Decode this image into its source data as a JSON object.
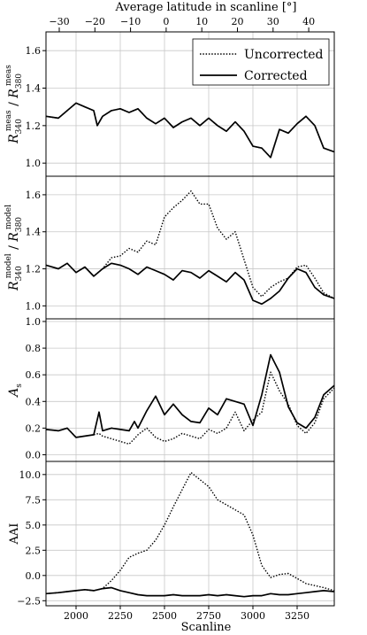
{
  "figure": {
    "top_axis_label": "Average latitude in scanline [°]",
    "bottom_axis_label": "Scanline",
    "top_ticks": [
      "−30",
      "−20",
      "−10",
      "0",
      "10",
      "20",
      "30",
      "40"
    ]
  },
  "chart_data": [
    {
      "type": "line",
      "panel": 1,
      "ylabel": "R340meas / R380meas",
      "ylabel_parts": {
        "base": "R",
        "sub1": "340",
        "sup1": "meas",
        "sep": " / ",
        "sub2": "380",
        "sup2": "meas"
      },
      "xlim": [
        1830,
        3460
      ],
      "ylim": [
        0.93,
        1.7
      ],
      "yticks": [
        "1.0",
        "1.2",
        "1.4",
        "1.6"
      ],
      "grid": true,
      "legend": {
        "placement": "top-right",
        "entries": [
          "Uncorrected",
          "Corrected"
        ]
      },
      "series": [
        {
          "name": "Uncorrected",
          "style": "dotted",
          "x": [
            1830,
            1900,
            1950,
            2000,
            2050,
            2100,
            2120,
            2150,
            2200,
            2250,
            2300,
            2350,
            2400,
            2450,
            2500,
            2550,
            2600,
            2650,
            2700,
            2750,
            2800,
            2850,
            2900,
            2950,
            3000,
            3050,
            3100,
            3150,
            3200,
            3250,
            3300,
            3350,
            3400,
            3460
          ],
          "y": [
            1.25,
            1.24,
            1.28,
            1.32,
            1.3,
            1.28,
            1.2,
            1.25,
            1.28,
            1.29,
            1.27,
            1.29,
            1.24,
            1.21,
            1.24,
            1.19,
            1.22,
            1.24,
            1.2,
            1.24,
            1.2,
            1.17,
            1.22,
            1.17,
            1.09,
            1.08,
            1.03,
            1.18,
            1.16,
            1.21,
            1.25,
            1.2,
            1.08,
            1.06
          ]
        },
        {
          "name": "Corrected",
          "style": "solid",
          "x": [
            1830,
            1900,
            1950,
            2000,
            2050,
            2100,
            2120,
            2150,
            2200,
            2250,
            2300,
            2350,
            2400,
            2450,
            2500,
            2550,
            2600,
            2650,
            2700,
            2750,
            2800,
            2850,
            2900,
            2950,
            3000,
            3050,
            3100,
            3150,
            3200,
            3250,
            3300,
            3350,
            3400,
            3460
          ],
          "y": [
            1.25,
            1.24,
            1.28,
            1.32,
            1.3,
            1.28,
            1.2,
            1.25,
            1.28,
            1.29,
            1.27,
            1.29,
            1.24,
            1.21,
            1.24,
            1.19,
            1.22,
            1.24,
            1.2,
            1.24,
            1.2,
            1.17,
            1.22,
            1.17,
            1.09,
            1.08,
            1.03,
            1.18,
            1.16,
            1.21,
            1.25,
            1.2,
            1.08,
            1.06
          ]
        }
      ]
    },
    {
      "type": "line",
      "panel": 2,
      "ylabel": "R340model / R380model",
      "ylabel_parts": {
        "base": "R",
        "sub1": "340",
        "sup1": "model",
        "sep": " / ",
        "sub2": "380",
        "sup2": "model"
      },
      "xlim": [
        1830,
        3460
      ],
      "ylim": [
        0.93,
        1.7
      ],
      "yticks": [
        "1.0",
        "1.2",
        "1.4",
        "1.6"
      ],
      "grid": true,
      "series": [
        {
          "name": "Uncorrected",
          "style": "dotted",
          "x": [
            1830,
            1900,
            1950,
            2000,
            2050,
            2100,
            2150,
            2200,
            2250,
            2300,
            2350,
            2400,
            2450,
            2500,
            2550,
            2600,
            2650,
            2700,
            2750,
            2800,
            2850,
            2900,
            2950,
            3000,
            3050,
            3100,
            3150,
            3200,
            3250,
            3300,
            3350,
            3400,
            3460
          ],
          "y": [
            1.22,
            1.2,
            1.23,
            1.18,
            1.21,
            1.16,
            1.2,
            1.26,
            1.27,
            1.31,
            1.29,
            1.35,
            1.33,
            1.48,
            1.53,
            1.57,
            1.62,
            1.55,
            1.55,
            1.42,
            1.36,
            1.4,
            1.25,
            1.1,
            1.05,
            1.1,
            1.13,
            1.15,
            1.21,
            1.22,
            1.15,
            1.07,
            1.04
          ]
        },
        {
          "name": "Corrected",
          "style": "solid",
          "x": [
            1830,
            1900,
            1950,
            2000,
            2050,
            2100,
            2150,
            2200,
            2250,
            2300,
            2350,
            2400,
            2450,
            2500,
            2550,
            2600,
            2650,
            2700,
            2750,
            2800,
            2850,
            2900,
            2950,
            3000,
            3050,
            3100,
            3150,
            3200,
            3250,
            3300,
            3350,
            3400,
            3460
          ],
          "y": [
            1.22,
            1.2,
            1.23,
            1.18,
            1.21,
            1.16,
            1.2,
            1.23,
            1.22,
            1.2,
            1.17,
            1.21,
            1.19,
            1.17,
            1.14,
            1.19,
            1.18,
            1.15,
            1.19,
            1.16,
            1.13,
            1.18,
            1.14,
            1.03,
            1.01,
            1.04,
            1.08,
            1.15,
            1.2,
            1.18,
            1.1,
            1.06,
            1.04
          ]
        }
      ]
    },
    {
      "type": "line",
      "panel": 3,
      "ylabel": "As",
      "ylabel_parts": {
        "base": "A",
        "sub1": "s"
      },
      "xlim": [
        1830,
        3460
      ],
      "ylim": [
        -0.05,
        1.02
      ],
      "yticks": [
        "0.0",
        "0.2",
        "0.4",
        "0.6",
        "0.8",
        "1.0"
      ],
      "grid": true,
      "series": [
        {
          "name": "Uncorrected",
          "style": "dotted",
          "x": [
            1830,
            1900,
            1950,
            2000,
            2050,
            2100,
            2130,
            2150,
            2200,
            2250,
            2300,
            2330,
            2350,
            2400,
            2450,
            2500,
            2550,
            2600,
            2650,
            2700,
            2750,
            2800,
            2850,
            2900,
            2950,
            3000,
            3050,
            3100,
            3150,
            3200,
            3250,
            3300,
            3350,
            3400,
            3460
          ],
          "y": [
            0.19,
            0.18,
            0.2,
            0.13,
            0.14,
            0.15,
            0.16,
            0.14,
            0.12,
            0.1,
            0.08,
            0.12,
            0.15,
            0.2,
            0.13,
            0.1,
            0.12,
            0.16,
            0.14,
            0.12,
            0.19,
            0.16,
            0.2,
            0.32,
            0.18,
            0.26,
            0.32,
            0.62,
            0.48,
            0.38,
            0.22,
            0.16,
            0.24,
            0.42,
            0.5
          ]
        },
        {
          "name": "Corrected",
          "style": "solid",
          "x": [
            1830,
            1900,
            1950,
            2000,
            2050,
            2100,
            2130,
            2150,
            2200,
            2250,
            2300,
            2330,
            2350,
            2400,
            2450,
            2500,
            2550,
            2600,
            2650,
            2700,
            2750,
            2800,
            2850,
            2900,
            2950,
            3000,
            3050,
            3100,
            3150,
            3200,
            3250,
            3300,
            3350,
            3400,
            3460
          ],
          "y": [
            0.19,
            0.18,
            0.2,
            0.13,
            0.14,
            0.15,
            0.32,
            0.18,
            0.2,
            0.19,
            0.18,
            0.25,
            0.2,
            0.33,
            0.44,
            0.3,
            0.38,
            0.3,
            0.25,
            0.24,
            0.35,
            0.3,
            0.42,
            0.4,
            0.38,
            0.22,
            0.45,
            0.75,
            0.62,
            0.36,
            0.24,
            0.2,
            0.28,
            0.45,
            0.52
          ]
        }
      ]
    },
    {
      "type": "line",
      "panel": 4,
      "ylabel": "AAI",
      "xlim": [
        1830,
        3460
      ],
      "ylim": [
        -3.0,
        11.3
      ],
      "yticks": [
        "−2.5",
        "0.0",
        "2.5",
        "5.0",
        "7.5",
        "10.0"
      ],
      "xticks": [
        "2000",
        "2250",
        "2500",
        "2750",
        "3000",
        "3250"
      ],
      "grid": true,
      "series": [
        {
          "name": "Uncorrected",
          "style": "dotted",
          "x": [
            1830,
            1900,
            1950,
            2000,
            2050,
            2100,
            2150,
            2200,
            2250,
            2300,
            2350,
            2400,
            2450,
            2500,
            2550,
            2600,
            2650,
            2700,
            2750,
            2800,
            2850,
            2900,
            2950,
            3000,
            3050,
            3100,
            3150,
            3200,
            3250,
            3300,
            3350,
            3400,
            3460
          ],
          "y": [
            -1.8,
            -1.7,
            -1.6,
            -1.5,
            -1.4,
            -1.5,
            -1.3,
            -0.5,
            0.5,
            1.8,
            2.2,
            2.5,
            3.5,
            5.0,
            6.8,
            8.5,
            10.2,
            9.5,
            8.8,
            7.5,
            7.0,
            6.5,
            6.0,
            4.0,
            1.0,
            -0.2,
            0.1,
            0.2,
            -0.3,
            -0.8,
            -1.0,
            -1.2,
            -1.5
          ]
        },
        {
          "name": "Corrected",
          "style": "solid",
          "x": [
            1830,
            1900,
            1950,
            2000,
            2050,
            2100,
            2150,
            2200,
            2250,
            2300,
            2350,
            2400,
            2450,
            2500,
            2550,
            2600,
            2650,
            2700,
            2750,
            2800,
            2850,
            2900,
            2950,
            3000,
            3050,
            3100,
            3150,
            3200,
            3250,
            3300,
            3350,
            3400,
            3460
          ],
          "y": [
            -1.8,
            -1.7,
            -1.6,
            -1.5,
            -1.4,
            -1.5,
            -1.3,
            -1.2,
            -1.5,
            -1.7,
            -1.9,
            -2.0,
            -2.0,
            -2.0,
            -1.9,
            -2.0,
            -2.0,
            -2.0,
            -1.9,
            -2.0,
            -1.9,
            -2.0,
            -2.1,
            -2.0,
            -2.0,
            -1.8,
            -1.9,
            -1.9,
            -1.8,
            -1.7,
            -1.6,
            -1.5,
            -1.6
          ]
        }
      ]
    }
  ]
}
